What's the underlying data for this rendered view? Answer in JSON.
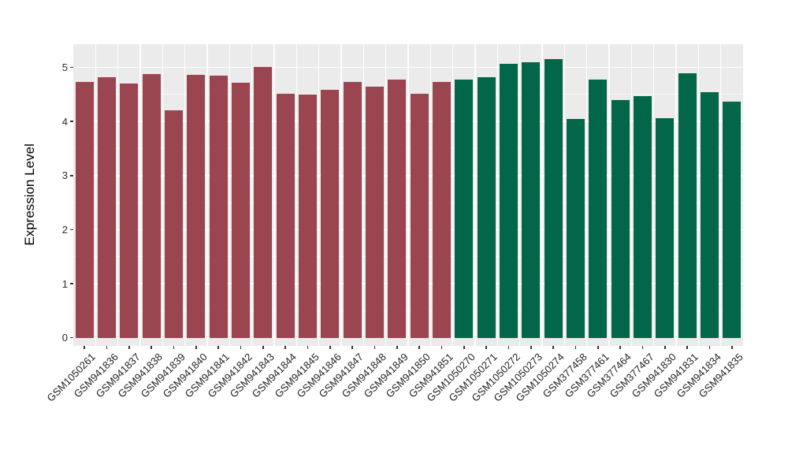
{
  "chart_data": {
    "type": "bar",
    "title": "",
    "xlabel": "",
    "ylabel": "Expression Level",
    "categories": [
      "GSM1050261",
      "GSM941836",
      "GSM941837",
      "GSM941838",
      "GSM941839",
      "GSM941840",
      "GSM941841",
      "GSM941842",
      "GSM941843",
      "GSM941844",
      "GSM941845",
      "GSM941846",
      "GSM941847",
      "GSM941848",
      "GSM941849",
      "GSM941850",
      "GSM941851",
      "GSM1050270",
      "GSM1050271",
      "GSM1050272",
      "GSM1050273",
      "GSM1050274",
      "GSM377458",
      "GSM377461",
      "GSM377464",
      "GSM377467",
      "GSM941830",
      "GSM941831",
      "GSM941834",
      "GSM941835"
    ],
    "values": [
      4.73,
      4.82,
      4.7,
      4.87,
      4.21,
      4.86,
      4.84,
      4.72,
      5.01,
      4.51,
      4.5,
      4.58,
      4.73,
      4.65,
      4.78,
      4.51,
      4.73,
      4.77,
      4.82,
      5.07,
      5.09,
      5.16,
      4.05,
      4.78,
      4.39,
      4.47,
      4.06,
      4.89,
      4.54,
      4.36
    ],
    "bar_groups": [
      {
        "start_index": 0,
        "end_index": 16,
        "color": "#9A4550"
      },
      {
        "start_index": 17,
        "end_index": 29,
        "color": "#026649"
      }
    ],
    "yticks": [
      0,
      1,
      2,
      3,
      4,
      5
    ],
    "ylim": [
      0,
      5.16
    ],
    "x_tick_angle_deg": 45,
    "grid": "on",
    "legend_position": "none",
    "colors": {
      "panel_background": "#EBEBEB",
      "grid_major": "#FFFFFF",
      "axis_text": "#1f1f1f",
      "tick_marks": "#333333"
    }
  }
}
